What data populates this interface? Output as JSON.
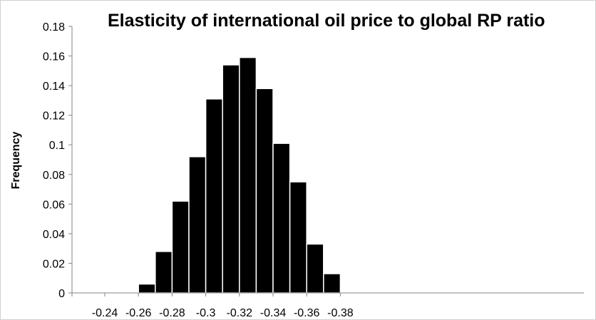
{
  "chart_data": {
    "type": "bar",
    "title": "Elasticity of international oil price to global RP ratio",
    "xlabel": "",
    "ylabel": "Frequency",
    "bin_edges": [
      -0.26,
      -0.27,
      -0.28,
      -0.29,
      -0.3,
      -0.31,
      -0.32,
      -0.33,
      -0.34,
      -0.35,
      -0.36,
      -0.37
    ],
    "values": [
      0.006,
      0.028,
      0.062,
      0.092,
      0.131,
      0.154,
      0.159,
      0.138,
      0.101,
      0.075,
      0.033,
      0.013
    ],
    "xlim": [
      -0.23,
      -0.385
    ],
    "xticks": [
      -0.24,
      -0.26,
      -0.28,
      -0.3,
      -0.32,
      -0.34,
      -0.36,
      -0.38
    ],
    "xtick_labels": [
      "-0.24",
      "-0.26",
      "-0.28",
      "-0.3",
      "-0.32",
      "-0.34",
      "-0.36",
      "-0.38"
    ],
    "ylim": [
      0,
      0.18
    ],
    "yticks": [
      0,
      0.02,
      0.04,
      0.06,
      0.08,
      0.1,
      0.12,
      0.14,
      0.16,
      0.18
    ],
    "ytick_labels": [
      "0",
      "0.02",
      "0.04",
      "0.06",
      "0.08",
      "0.1",
      "0.12",
      "0.14",
      "0.16",
      "0.18"
    ],
    "bar_color": "#000000",
    "bar_edge_color": "#ffffff",
    "grid": false,
    "legend": "none"
  }
}
